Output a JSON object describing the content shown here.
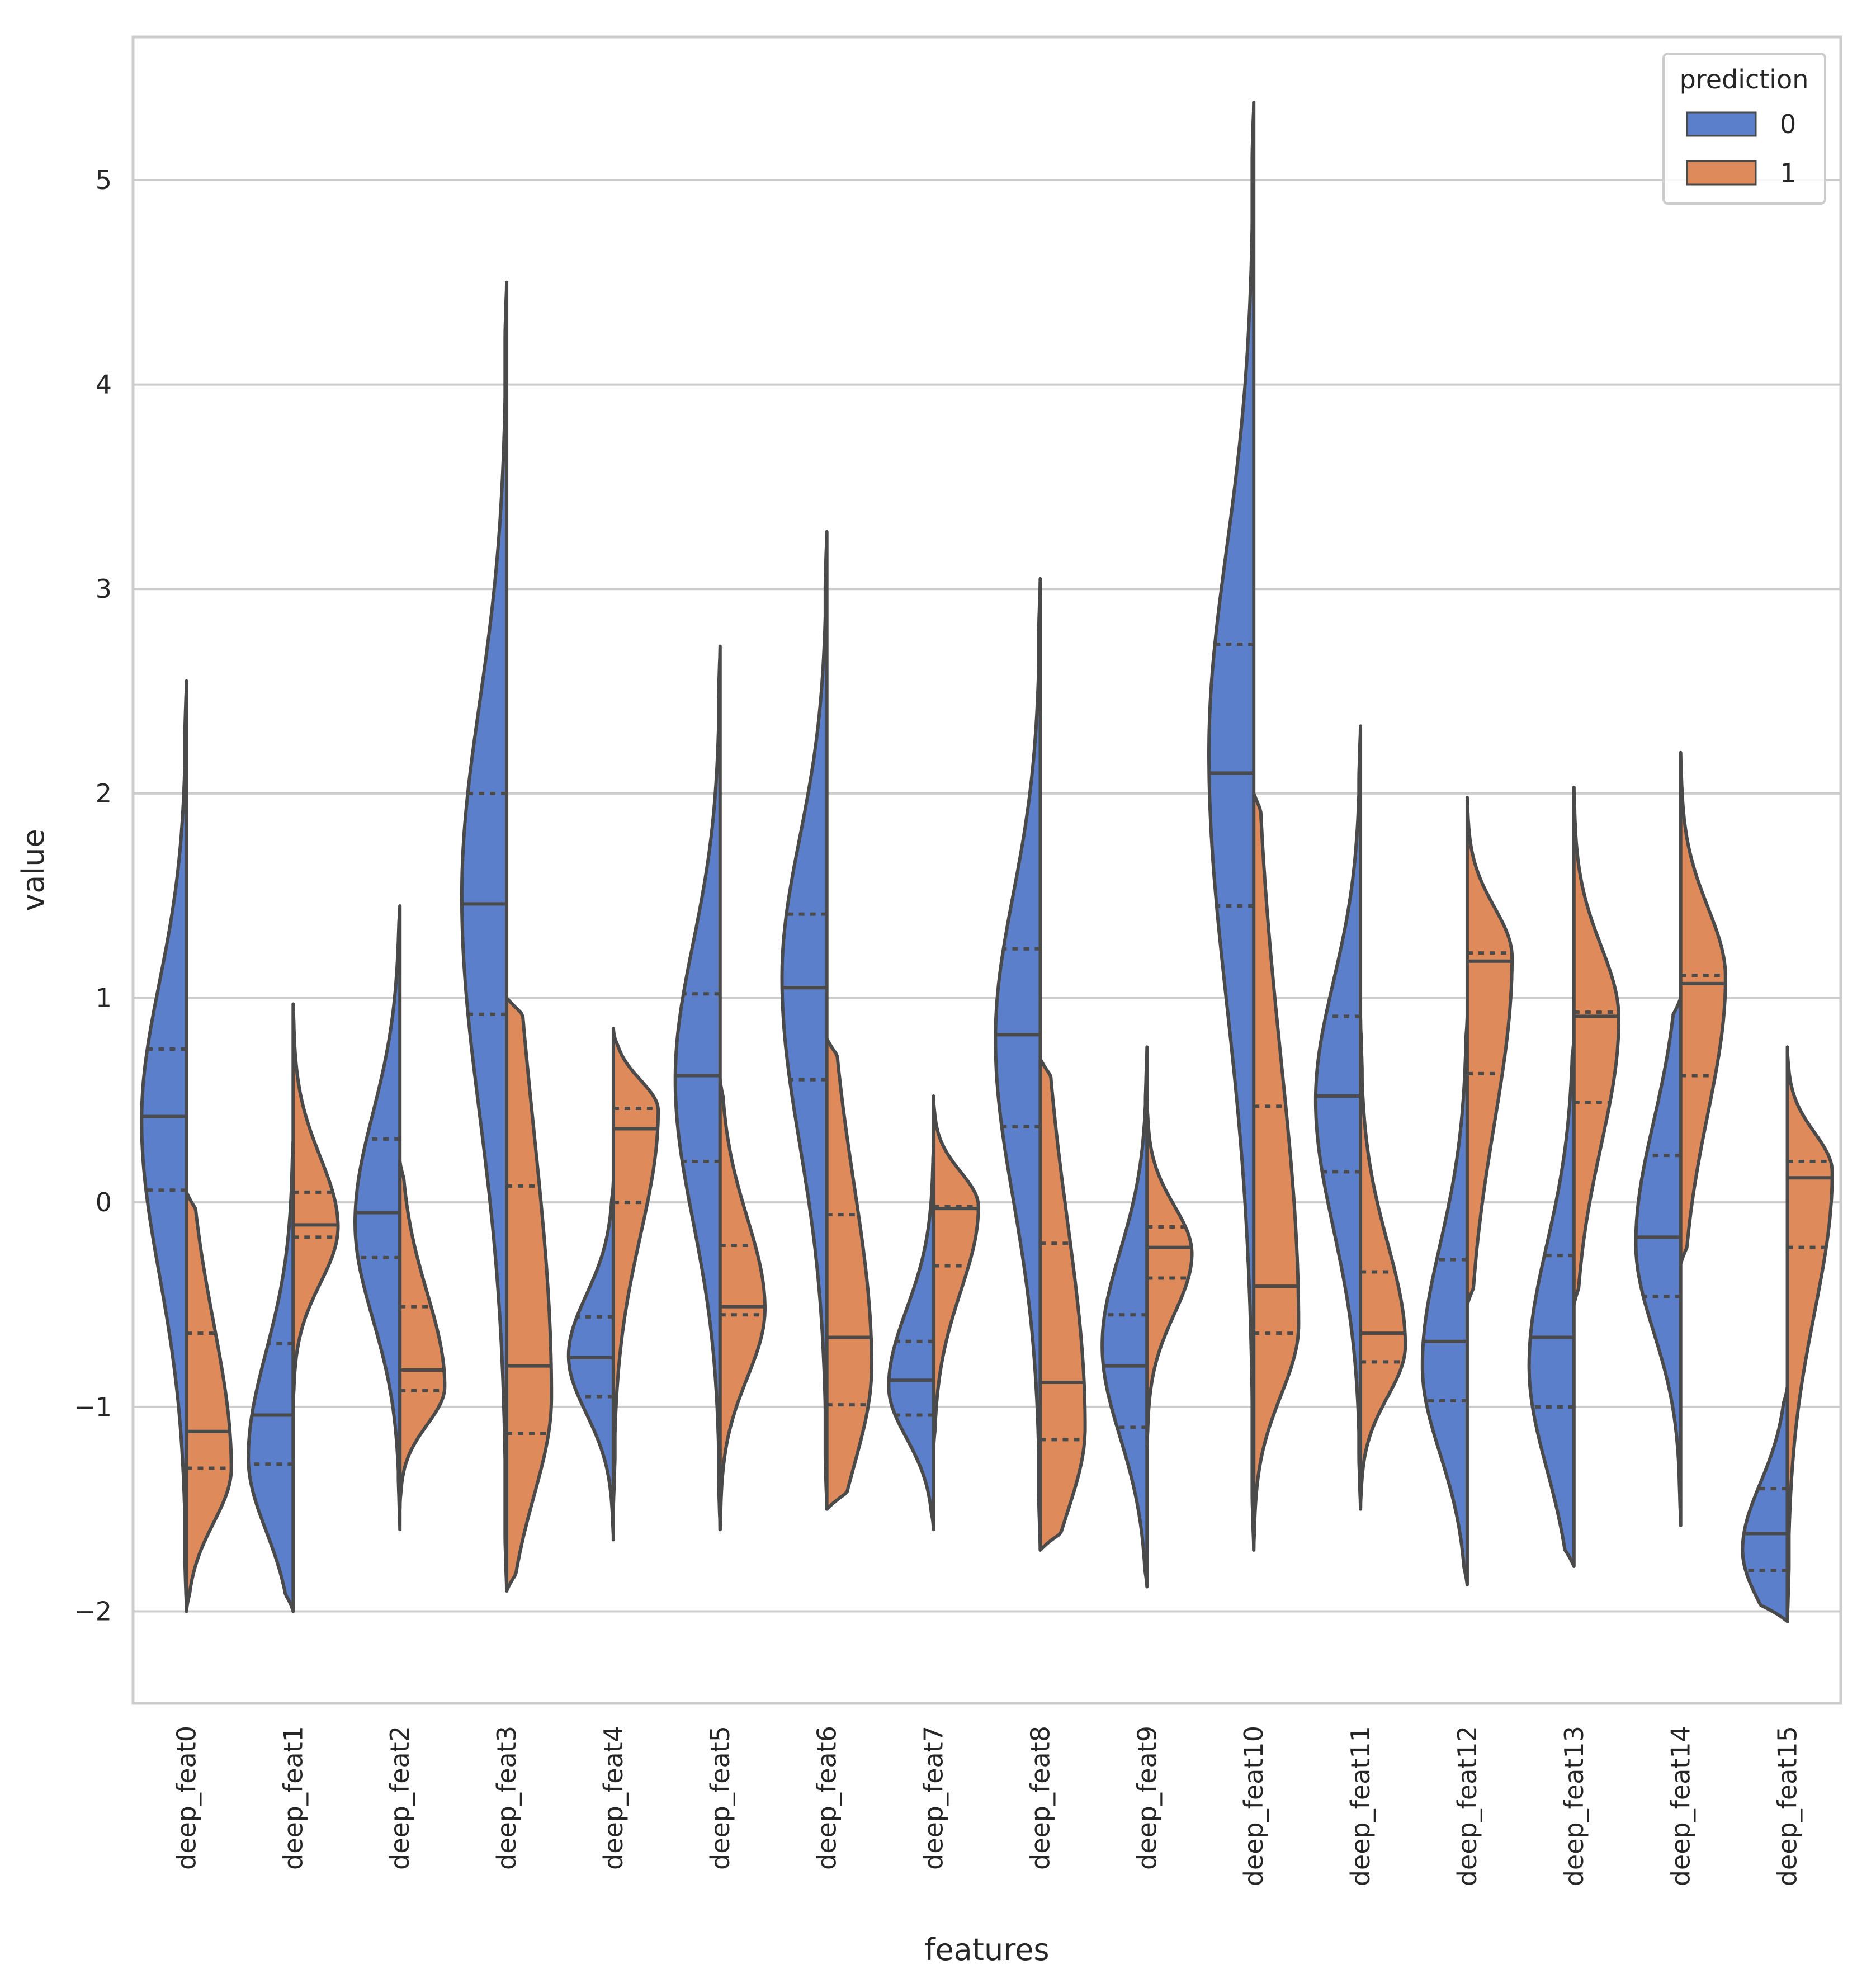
{
  "chart_data": {
    "type": "violin",
    "subtype": "split",
    "title": "",
    "xlabel": "features",
    "ylabel": "value",
    "ylim": [
      -2.45,
      5.7
    ],
    "yticks": [
      -2,
      -1,
      0,
      1,
      2,
      3,
      4,
      5
    ],
    "ytick_labels": [
      "−2",
      "−1",
      "0",
      "1",
      "2",
      "3",
      "4",
      "5"
    ],
    "grid": true,
    "inner": "quartile",
    "legend": {
      "title": "prediction",
      "position": "top-right",
      "entries": [
        {
          "label": "0",
          "color": "#5b7fca"
        },
        {
          "label": "1",
          "color": "#de8a5b"
        }
      ]
    },
    "series": [
      {
        "name": "0",
        "color": "#5b7fca",
        "side": "left"
      },
      {
        "name": "1",
        "color": "#de8a5b",
        "side": "right"
      }
    ],
    "categories": [
      {
        "label": "deep_feat0",
        "left": {
          "min": -2.0,
          "max": 2.55,
          "q1": 0.06,
          "median": 0.42,
          "q3": 0.75,
          "peak": 0.4
        },
        "right": {
          "min": -2.0,
          "max": 0.05,
          "q1": -1.3,
          "median": -1.12,
          "q3": -0.64,
          "peak": -1.3
        }
      },
      {
        "label": "deep_feat1",
        "left": {
          "min": -2.0,
          "max": 0.3,
          "q1": -1.28,
          "median": -1.04,
          "q3": -0.69,
          "peak": -1.25
        },
        "right": {
          "min": -1.0,
          "max": 0.97,
          "q1": -0.17,
          "median": -0.11,
          "q3": 0.05,
          "peak": -0.12
        }
      },
      {
        "label": "deep_feat2",
        "left": {
          "min": -1.6,
          "max": 1.45,
          "q1": -0.27,
          "median": -0.05,
          "q3": 0.31,
          "peak": -0.1
        },
        "right": {
          "min": -1.5,
          "max": 0.2,
          "q1": -0.92,
          "median": -0.82,
          "q3": -0.51,
          "peak": -0.9
        }
      },
      {
        "label": "deep_feat3",
        "left": {
          "min": -1.9,
          "max": 4.5,
          "q1": 0.92,
          "median": 1.46,
          "q3": 2.0,
          "peak": 1.5
        },
        "right": {
          "min": -1.9,
          "max": 1.0,
          "q1": -1.13,
          "median": -0.8,
          "q3": 0.08,
          "peak": -0.95
        }
      },
      {
        "label": "deep_feat4",
        "left": {
          "min": -1.65,
          "max": 0.1,
          "q1": -0.95,
          "median": -0.76,
          "q3": -0.56,
          "peak": -0.75
        },
        "right": {
          "min": -1.5,
          "max": 0.85,
          "q1": 0.0,
          "median": 0.36,
          "q3": 0.46,
          "peak": 0.45
        }
      },
      {
        "label": "deep_feat5",
        "left": {
          "min": -1.6,
          "max": 2.72,
          "q1": 0.2,
          "median": 0.62,
          "q3": 1.02,
          "peak": 0.6
        },
        "right": {
          "min": -1.6,
          "max": 0.6,
          "q1": -0.55,
          "median": -0.51,
          "q3": -0.21,
          "peak": -0.52
        }
      },
      {
        "label": "deep_feat6",
        "left": {
          "min": -1.5,
          "max": 3.28,
          "q1": 0.6,
          "median": 1.05,
          "q3": 1.41,
          "peak": 1.1
        },
        "right": {
          "min": -1.5,
          "max": 0.8,
          "q1": -0.99,
          "median": -0.66,
          "q3": -0.06,
          "peak": -0.8
        }
      },
      {
        "label": "deep_feat7",
        "left": {
          "min": -1.6,
          "max": 0.3,
          "q1": -1.04,
          "median": -0.87,
          "q3": -0.68,
          "peak": -0.9
        },
        "right": {
          "min": -1.2,
          "max": 0.52,
          "q1": -0.31,
          "median": -0.03,
          "q3": -0.02,
          "peak": -0.02
        }
      },
      {
        "label": "deep_feat8",
        "left": {
          "min": -1.7,
          "max": 3.05,
          "q1": 0.37,
          "median": 0.82,
          "q3": 1.24,
          "peak": 0.8
        },
        "right": {
          "min": -1.7,
          "max": 0.7,
          "q1": -1.16,
          "median": -0.88,
          "q3": -0.2,
          "peak": -1.1
        }
      },
      {
        "label": "deep_feat9",
        "left": {
          "min": -1.88,
          "max": 0.76,
          "q1": -1.1,
          "median": -0.8,
          "q3": -0.55,
          "peak": -0.7
        },
        "right": {
          "min": -1.2,
          "max": 0.5,
          "q1": -0.37,
          "median": -0.22,
          "q3": -0.12,
          "peak": -0.25
        }
      },
      {
        "label": "deep_feat10",
        "left": {
          "min": -1.7,
          "max": 5.38,
          "q1": 1.45,
          "median": 2.1,
          "q3": 2.73,
          "peak": 2.2
        },
        "right": {
          "min": -1.7,
          "max": 2.0,
          "q1": -0.64,
          "median": -0.41,
          "q3": 0.47,
          "peak": -0.6
        }
      },
      {
        "label": "deep_feat11",
        "left": {
          "min": -1.5,
          "max": 2.33,
          "q1": 0.15,
          "median": 0.52,
          "q3": 0.91,
          "peak": 0.5
        },
        "right": {
          "min": -1.5,
          "max": 0.9,
          "q1": -0.78,
          "median": -0.64,
          "q3": -0.34,
          "peak": -0.7
        }
      },
      {
        "label": "deep_feat12",
        "left": {
          "min": -1.87,
          "max": 0.9,
          "q1": -0.97,
          "median": -0.68,
          "q3": -0.28,
          "peak": -0.8
        },
        "right": {
          "min": -0.5,
          "max": 1.98,
          "q1": 0.63,
          "median": 1.18,
          "q3": 1.22,
          "peak": 1.2
        }
      },
      {
        "label": "deep_feat13",
        "left": {
          "min": -1.78,
          "max": 0.8,
          "q1": -1.0,
          "median": -0.66,
          "q3": -0.26,
          "peak": -0.8
        },
        "right": {
          "min": -0.5,
          "max": 2.03,
          "q1": 0.49,
          "median": 0.91,
          "q3": 0.93,
          "peak": 0.9
        }
      },
      {
        "label": "deep_feat14",
        "left": {
          "min": -1.58,
          "max": 1.0,
          "q1": -0.46,
          "median": -0.17,
          "q3": 0.23,
          "peak": -0.2
        },
        "right": {
          "min": -0.3,
          "max": 2.2,
          "q1": 0.62,
          "median": 1.07,
          "q3": 1.11,
          "peak": 1.1
        }
      },
      {
        "label": "deep_feat15",
        "left": {
          "min": -2.05,
          "max": -0.9,
          "q1": -1.8,
          "median": -1.62,
          "q3": -1.4,
          "peak": -1.7
        },
        "right": {
          "min": -2.05,
          "max": 0.76,
          "q1": -0.22,
          "median": 0.12,
          "q3": 0.2,
          "peak": 0.15
        }
      }
    ]
  }
}
